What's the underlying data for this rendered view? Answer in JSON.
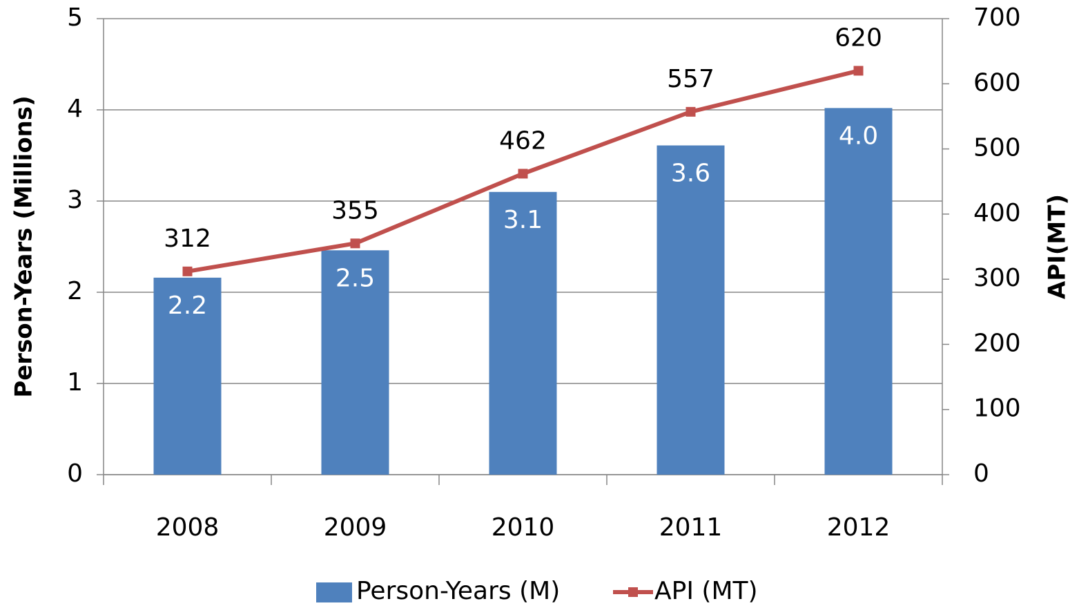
{
  "chart_data": {
    "type": "bar",
    "categories": [
      "2008",
      "2009",
      "2010",
      "2011",
      "2012"
    ],
    "series": [
      {
        "name": "Person-Years (M)",
        "color": "#4f81bd",
        "values": [
          2.16,
          2.46,
          3.1,
          3.61,
          4.02
        ],
        "value_labels": [
          "2.2",
          "2.5",
          "3.1",
          "3.6",
          "4.0"
        ]
      },
      {
        "name": "API (MT)",
        "color": "#c0504d",
        "type": "line",
        "axis": "y2",
        "values": [
          312,
          355,
          462,
          557,
          620
        ]
      }
    ],
    "ylabel": "Person-Years (Millions)",
    "y2label": "API(MT)",
    "ylim": [
      0,
      5
    ],
    "yticks": [
      0,
      1,
      2,
      3,
      4,
      5
    ],
    "y2lim": [
      0,
      700
    ],
    "y2ticks": [
      0,
      100,
      200,
      300,
      400,
      500,
      600,
      700
    ],
    "grid": true,
    "legend": "bottom"
  }
}
